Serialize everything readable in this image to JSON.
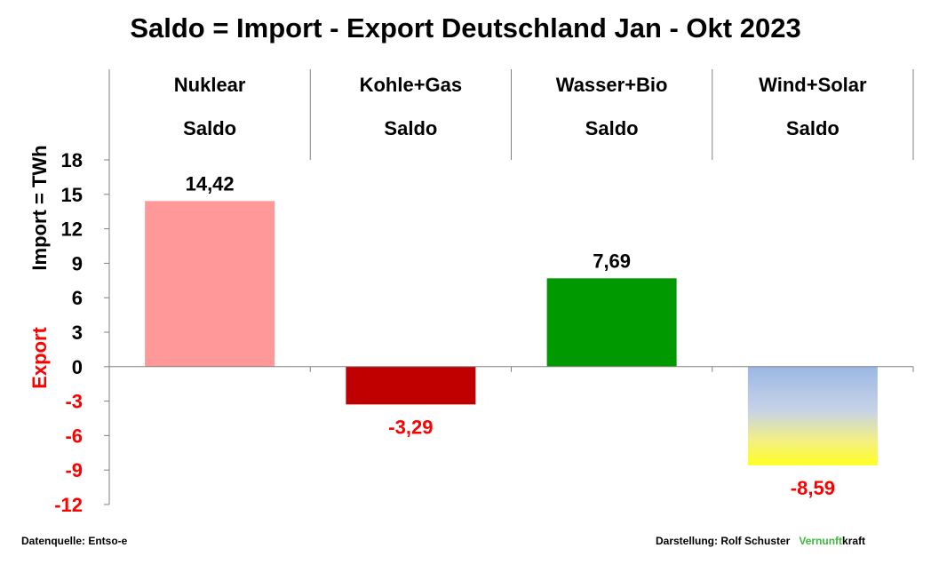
{
  "chart_data": {
    "type": "bar",
    "title": "Saldo = Import - Export Deutschland Jan - Okt 2023",
    "categories": [
      {
        "name": "Nuklear",
        "sub": "Saldo"
      },
      {
        "name": "Kohle+Gas",
        "sub": "Saldo"
      },
      {
        "name": "Wasser+Bio",
        "sub": "Saldo"
      },
      {
        "name": "Wind+Solar",
        "sub": "Saldo"
      }
    ],
    "values": [
      14.42,
      -3.29,
      7.69,
      -8.59
    ],
    "value_labels": [
      "14,42",
      "-3,29",
      "7,69",
      "-8,59"
    ],
    "ylabel_import": "Import =  TWh",
    "ylabel_export": "Export",
    "ylim": [
      -12,
      18
    ],
    "yticks": [
      18,
      15,
      12,
      9,
      6,
      3,
      0,
      -3,
      -6,
      -9,
      -12
    ],
    "bar_colors": [
      "#ff9999",
      "#c00000",
      "#009900",
      "gradient:#9bb7e4-#ffff33"
    ],
    "negative_color": "#ff0000",
    "grid": false
  },
  "footer": {
    "source": "Datenquelle: Entso-e",
    "credit": "Darstellung:  Rolf Schuster",
    "brand_green": "Vernunft",
    "brand_black": "kraft"
  }
}
